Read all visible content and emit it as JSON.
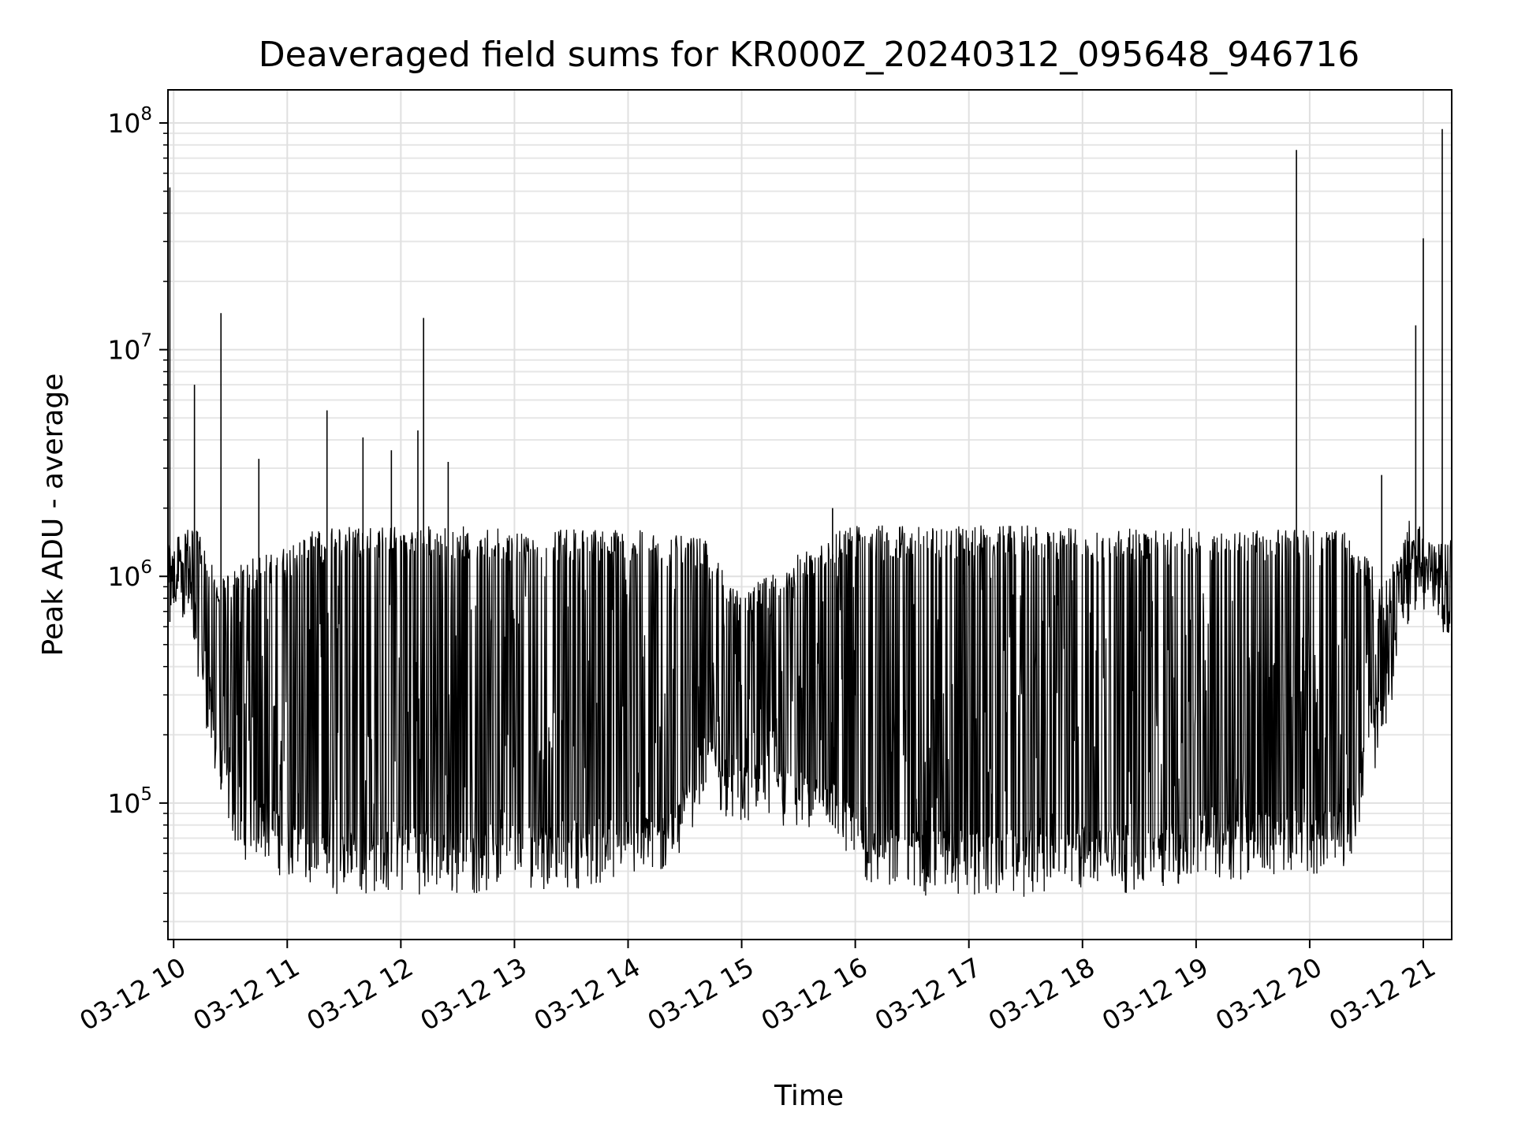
{
  "chart_data": {
    "type": "line",
    "title": "Deaveraged field sums for KR000Z_20240312_095648_946716",
    "xlabel": "Time",
    "ylabel": "Peak ADU - average",
    "yscale": "log",
    "ylim": [
      25000,
      140000000
    ],
    "xlim": [
      "2024-03-12 09:57",
      "2024-03-12 21:15"
    ],
    "grid": true,
    "line_color": "#000000",
    "x_ticks": [
      {
        "label": "03-12 10",
        "value": "2024-03-12 10:00"
      },
      {
        "label": "03-12 11",
        "value": "2024-03-12 11:00"
      },
      {
        "label": "03-12 12",
        "value": "2024-03-12 12:00"
      },
      {
        "label": "03-12 13",
        "value": "2024-03-12 13:00"
      },
      {
        "label": "03-12 14",
        "value": "2024-03-12 14:00"
      },
      {
        "label": "03-12 15",
        "value": "2024-03-12 15:00"
      },
      {
        "label": "03-12 16",
        "value": "2024-03-12 16:00"
      },
      {
        "label": "03-12 17",
        "value": "2024-03-12 17:00"
      },
      {
        "label": "03-12 18",
        "value": "2024-03-12 18:00"
      },
      {
        "label": "03-12 19",
        "value": "2024-03-12 19:00"
      },
      {
        "label": "03-12 20",
        "value": "2024-03-12 20:00"
      },
      {
        "label": "03-12 21",
        "value": "2024-03-12 21:00"
      }
    ],
    "y_ticks": [
      {
        "base": "10",
        "exp": "5",
        "value": 100000
      },
      {
        "base": "10",
        "exp": "6",
        "value": 1000000
      },
      {
        "base": "10",
        "exp": "7",
        "value": 10000000
      },
      {
        "base": "10",
        "exp": "8",
        "value": 100000000
      }
    ],
    "envelope": {
      "x": [
        "2024-03-12 09:57",
        "2024-03-12 10:03",
        "2024-03-12 10:12",
        "2024-03-12 10:24",
        "2024-03-12 10:36",
        "2024-03-12 10:48",
        "2024-03-12 11:00",
        "2024-03-12 11:12",
        "2024-03-12 11:30",
        "2024-03-12 12:00",
        "2024-03-12 12:30",
        "2024-03-12 13:00",
        "2024-03-12 13:30",
        "2024-03-12 14:00",
        "2024-03-12 14:24",
        "2024-03-12 14:40",
        "2024-03-12 15:00",
        "2024-03-12 15:30",
        "2024-03-12 15:48",
        "2024-03-12 16:00",
        "2024-03-12 16:30",
        "2024-03-12 17:00",
        "2024-03-12 17:30",
        "2024-03-12 18:00",
        "2024-03-12 18:30",
        "2024-03-12 19:00",
        "2024-03-12 19:30",
        "2024-03-12 20:00",
        "2024-03-12 20:20",
        "2024-03-12 20:40",
        "2024-03-12 20:54",
        "2024-03-12 21:06",
        "2024-03-12 21:15"
      ],
      "high": [
        1300000,
        1500000,
        1600000,
        900000,
        1100000,
        1200000,
        1300000,
        1500000,
        1600000,
        1600000,
        1600000,
        1550000,
        1550000,
        1550000,
        1450000,
        1400000,
        800000,
        1200000,
        1500000,
        1600000,
        1600000,
        1600000,
        1600000,
        1550000,
        1550000,
        1550000,
        1550000,
        1550000,
        1500000,
        900000,
        1800000,
        1300000,
        1400000
      ],
      "low": [
        600000,
        800000,
        500000,
        120000,
        70000,
        70000,
        55000,
        50000,
        48000,
        50000,
        48000,
        52000,
        52000,
        55000,
        60000,
        130000,
        95000,
        90000,
        80000,
        55000,
        48000,
        48000,
        48000,
        50000,
        50000,
        55000,
        58000,
        60000,
        65000,
        250000,
        900000,
        800000,
        500000
      ]
    },
    "spikes": [
      {
        "x": "2024-03-12 09:58",
        "y": 52000000
      },
      {
        "x": "2024-03-12 10:11",
        "y": 7000000
      },
      {
        "x": "2024-03-12 10:25",
        "y": 14500000
      },
      {
        "x": "2024-03-12 10:45",
        "y": 3300000
      },
      {
        "x": "2024-03-12 11:21",
        "y": 5400000
      },
      {
        "x": "2024-03-12 11:40",
        "y": 4100000
      },
      {
        "x": "2024-03-12 11:55",
        "y": 3600000
      },
      {
        "x": "2024-03-12 12:12",
        "y": 13800000
      },
      {
        "x": "2024-03-12 12:09",
        "y": 4400000
      },
      {
        "x": "2024-03-12 12:25",
        "y": 3200000
      },
      {
        "x": "2024-03-12 15:48",
        "y": 2000000
      },
      {
        "x": "2024-03-12 19:53",
        "y": 76000000
      },
      {
        "x": "2024-03-12 20:38",
        "y": 2800000
      },
      {
        "x": "2024-03-12 20:56",
        "y": 12800000
      },
      {
        "x": "2024-03-12 21:00",
        "y": 31000000
      },
      {
        "x": "2024-03-12 21:10",
        "y": 94000000
      }
    ]
  }
}
